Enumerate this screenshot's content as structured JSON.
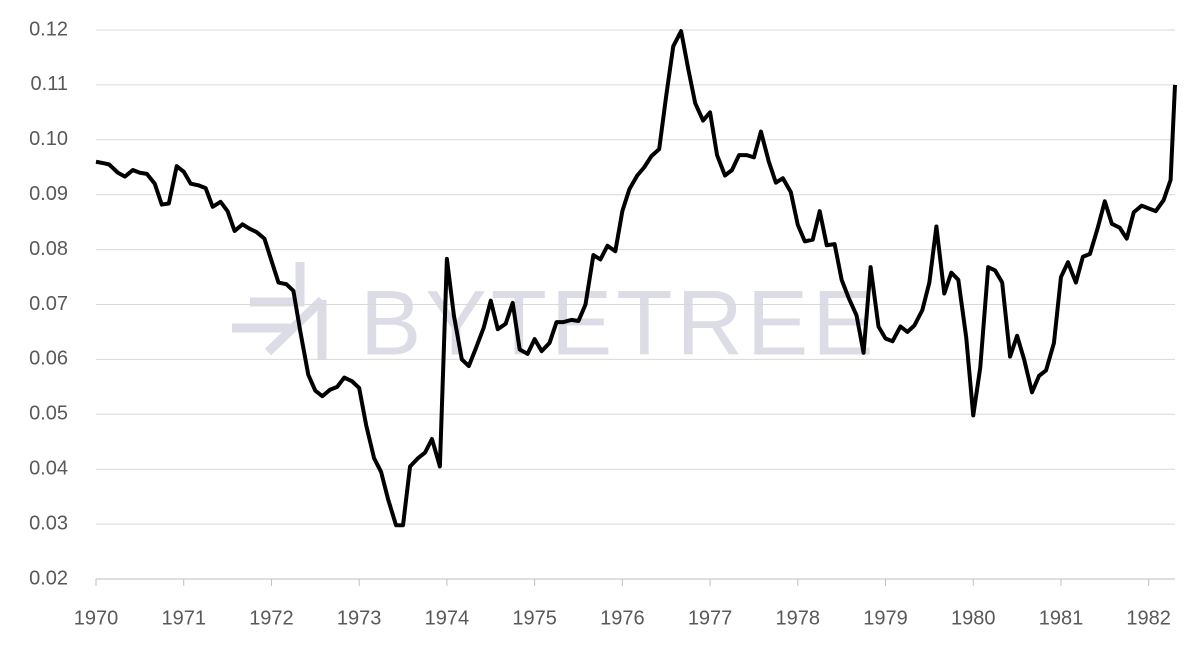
{
  "chart_data": {
    "type": "line",
    "watermark": "BYTETREE",
    "color": "#000000",
    "grid": true,
    "x": [
      1970.0,
      1970.1,
      1970.15,
      1970.25,
      1970.33,
      1970.42,
      1970.5,
      1970.58,
      1970.67,
      1970.75,
      1970.83,
      1970.92,
      1971.0,
      1971.08,
      1971.17,
      1971.25,
      1971.33,
      1971.42,
      1971.5,
      1971.58,
      1971.67,
      1971.75,
      1971.83,
      1971.92,
      1972.0,
      1972.08,
      1972.17,
      1972.25,
      1972.33,
      1972.42,
      1972.5,
      1972.58,
      1972.67,
      1972.75,
      1972.83,
      1972.92,
      1973.0,
      1973.08,
      1973.17,
      1973.25,
      1973.33,
      1973.42,
      1973.5,
      1973.58,
      1973.67,
      1973.75,
      1973.83,
      1973.92,
      1974.0,
      1974.08,
      1974.17,
      1974.25,
      1974.33,
      1974.42,
      1974.5,
      1974.58,
      1974.67,
      1974.75,
      1974.83,
      1974.92,
      1975.0,
      1975.08,
      1975.17,
      1975.25,
      1975.33,
      1975.42,
      1975.5,
      1975.58,
      1975.67,
      1975.75,
      1975.83,
      1975.92,
      1976.0,
      1976.08,
      1976.17,
      1976.25,
      1976.33,
      1976.42,
      1976.5,
      1976.58,
      1976.67,
      1976.75,
      1976.83,
      1976.92,
      1977.0,
      1977.08,
      1977.17,
      1977.25,
      1977.33,
      1977.42,
      1977.5,
      1977.58,
      1977.67,
      1977.75,
      1977.83,
      1977.92,
      1978.0,
      1978.08,
      1978.17,
      1978.25,
      1978.33,
      1978.42,
      1978.5,
      1978.58,
      1978.67,
      1978.75,
      1978.83,
      1978.92,
      1979.0,
      1979.08,
      1979.17,
      1979.25,
      1979.33,
      1979.42,
      1979.5,
      1979.58,
      1979.67,
      1979.75,
      1979.83,
      1979.92,
      1980.0,
      1980.08,
      1980.17,
      1980.25,
      1980.33,
      1980.42,
      1980.5,
      1980.58,
      1980.67,
      1980.75,
      1980.83,
      1980.92,
      1981.0,
      1981.08,
      1981.17,
      1981.25,
      1981.33,
      1981.42,
      1981.5,
      1981.58,
      1981.67,
      1981.75,
      1981.83,
      1981.92,
      1982.0,
      1982.08,
      1982.17,
      1982.25,
      1982.3
    ],
    "values": [
      0.096,
      0.0957,
      0.0955,
      0.094,
      0.0933,
      0.0945,
      0.094,
      0.0938,
      0.092,
      0.0882,
      0.0884,
      0.0952,
      0.0942,
      0.092,
      0.0917,
      0.0912,
      0.0878,
      0.0887,
      0.087,
      0.0834,
      0.0846,
      0.0838,
      0.0832,
      0.082,
      0.078,
      0.074,
      0.0737,
      0.0725,
      0.065,
      0.0572,
      0.0543,
      0.0533,
      0.0545,
      0.055,
      0.0567,
      0.056,
      0.0548,
      0.048,
      0.042,
      0.0395,
      0.0345,
      0.0298,
      0.0298,
      0.0405,
      0.042,
      0.043,
      0.0455,
      0.0405,
      0.0783,
      0.068,
      0.06,
      0.0588,
      0.062,
      0.0658,
      0.0707,
      0.0655,
      0.0665,
      0.0703,
      0.0618,
      0.061,
      0.0637,
      0.0615,
      0.063,
      0.0668,
      0.0668,
      0.0672,
      0.067,
      0.07,
      0.079,
      0.0782,
      0.0807,
      0.0797,
      0.087,
      0.091,
      0.0935,
      0.095,
      0.097,
      0.0983,
      0.108,
      0.117,
      0.1198,
      0.113,
      0.1067,
      0.1035,
      0.105,
      0.0972,
      0.0935,
      0.0945,
      0.0972,
      0.0972,
      0.0968,
      0.1015,
      0.096,
      0.0922,
      0.093,
      0.0905,
      0.0845,
      0.0815,
      0.0818,
      0.087,
      0.0808,
      0.081,
      0.0745,
      0.0712,
      0.068,
      0.0612,
      0.0768,
      0.066,
      0.0638,
      0.0633,
      0.066,
      0.065,
      0.0662,
      0.069,
      0.074,
      0.0842,
      0.072,
      0.0758,
      0.0745,
      0.064,
      0.0498,
      0.0585,
      0.0768,
      0.0762,
      0.074,
      0.0605,
      0.0643,
      0.06,
      0.054,
      0.057,
      0.058,
      0.063,
      0.075,
      0.0777,
      0.074,
      0.0787,
      0.0792,
      0.084,
      0.0888,
      0.0847,
      0.084,
      0.082,
      0.0868,
      0.088,
      0.0875,
      0.087,
      0.089,
      0.0927,
      0.11
    ],
    "xlim": [
      1970,
      1982.3
    ],
    "xticks": [
      1970,
      1971,
      1972,
      1973,
      1974,
      1975,
      1976,
      1977,
      1978,
      1979,
      1980,
      1981,
      1982
    ],
    "ylim": [
      0.02,
      0.12
    ],
    "yticks": [
      0.02,
      0.03,
      0.04,
      0.05,
      0.06,
      0.07,
      0.08,
      0.09,
      {
        "value": 0.1,
        "label": "0.10"
      },
      0.11,
      0.12
    ]
  }
}
